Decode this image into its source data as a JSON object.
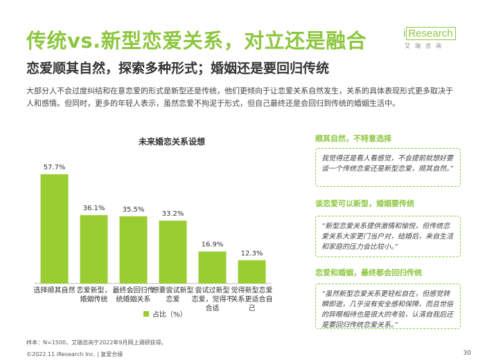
{
  "header": {
    "title": "传统vs.新型恋爱关系，对立还是融合",
    "subtitle": "恋爱顺其自然，探索多种形式；婚姻还是要回归传统",
    "logo_text_i": "i",
    "logo_text_rest": "Research",
    "logo_cn": "艾瑞咨询"
  },
  "intro": "大部分人不会过度纠结和在意恋爱的形式是新型还是传统，他们更倾向于让恋爱关系自然发生，关系的具体表现形式更多取决于人和感情。但同时，更多的年轻人表示，虽然恋爱不拘泥于形式，但自己最终还是会回归到传统的婚姻生活中。",
  "chart_data": {
    "type": "bar",
    "title": "未来婚恋关系设想",
    "categories": [
      [
        "选择顺其自然"
      ],
      [
        "恋爱新型，",
        "婚姻传统"
      ],
      [
        "最终会回归传",
        "统婚姻关系"
      ],
      [
        "想要尝试新型",
        "恋爱"
      ],
      [
        "尝试过新型",
        "恋爱，觉得不",
        "合适"
      ],
      [
        "觉得新型恋爱",
        "关系更适合自",
        "己"
      ]
    ],
    "values": [
      57.7,
      36.1,
      35.5,
      33.2,
      16.9,
      12.3
    ],
    "value_labels": [
      "57.7%",
      "36.1%",
      "35.5%",
      "33.2%",
      "16.9%",
      "12.3%"
    ],
    "series": [
      {
        "name": "占比（%）",
        "values": [
          57.7,
          36.1,
          35.5,
          33.2,
          16.9,
          12.3
        ]
      }
    ],
    "ylim": [
      0,
      60
    ],
    "grid": false,
    "legend": "bottom",
    "bar_color": "#9acd32"
  },
  "quotes": [
    {
      "heading": "顺其自然，不特意选择",
      "text": "我觉得还是看人看感觉，不会提前就想好要谈一个传统恋爱还是新型恋爱，顺其自然。”"
    },
    {
      "heading": "谈恋爱可以新型，婚姻要传统",
      "text": "“新型恋爱关系提供激情和愉悦，但传统恋爱关系大家更门当户对，结婚后，来自生活和家庭的压力会比较小。”"
    },
    {
      "heading": "恋爱和婚姻，最终都会回归传统",
      "text": "“虽然新型恋爱关系更轻松自在，但感觉转瞬即逝，几乎没有安全感和保障，而且世俗的异眼相待也是很大的考验，认清自我后还是要回归传统恋爱关系。”"
    }
  ],
  "footnote": "样本：N=1500，艾瑞咨询于2022年9月网上调研获得。",
  "footer": "©2022.11 iResearch Inc. | 复爱合缘",
  "page_number": "30"
}
